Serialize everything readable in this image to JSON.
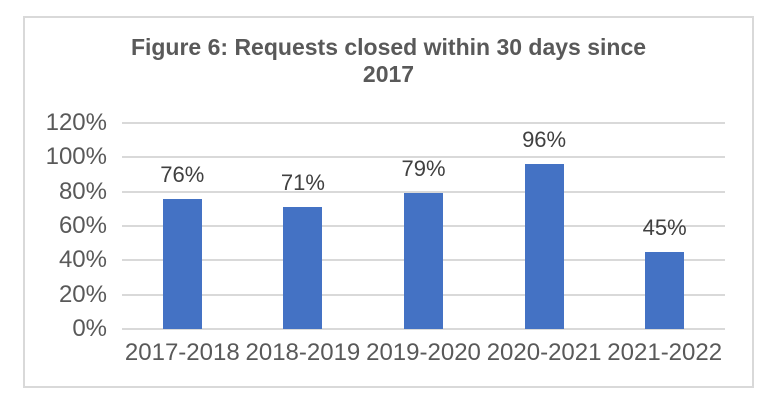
{
  "chart_data": {
    "type": "bar",
    "title": "Figure 6: Requests closed within 30 days since 2017",
    "title_lines": [
      "Figure 6: Requests closed within 30 days since",
      "2017"
    ],
    "categories": [
      "2017-2018",
      "2018-2019",
      "2019-2020",
      "2020-2021",
      "2021-2022"
    ],
    "values": [
      76,
      71,
      79,
      96,
      45
    ],
    "value_labels": [
      "76%",
      "71%",
      "79%",
      "96%",
      "45%"
    ],
    "ylim": [
      0,
      120
    ],
    "ytick_step": 20,
    "yticks": [
      {
        "value": 0,
        "label": "0%"
      },
      {
        "value": 20,
        "label": "20%"
      },
      {
        "value": 40,
        "label": "40%"
      },
      {
        "value": 60,
        "label": "60%"
      },
      {
        "value": 80,
        "label": "80%"
      },
      {
        "value": 100,
        "label": "100%"
      },
      {
        "value": 120,
        "label": "120%"
      }
    ],
    "xlabel": "",
    "ylabel": "",
    "grid": true,
    "legend": "none",
    "colors": {
      "bar": "#4472c4",
      "gridline": "#d9d9d9",
      "frame_border": "#d9d9d9",
      "title_text": "#595959",
      "axis_text": "#595959",
      "value_label_text": "#404040",
      "background": "#ffffff"
    }
  }
}
